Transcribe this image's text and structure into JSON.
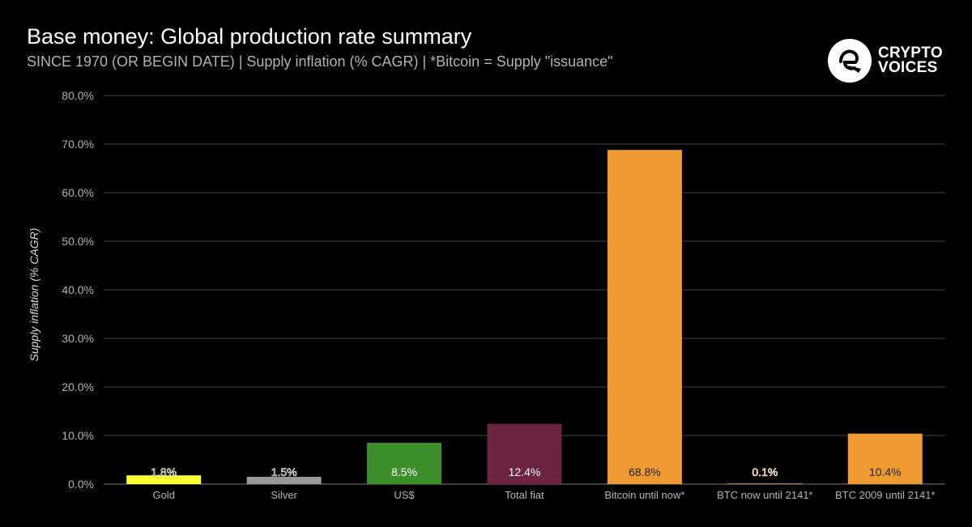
{
  "header": {
    "title": "Base money: Global production rate summary",
    "subtitle": "SINCE 1970 (OR BEGIN DATE) | Supply inflation (% CAGR) | *Bitcoin = Supply \"issuance\""
  },
  "logo": {
    "line1": "CRYPTO",
    "line2": "VOICES"
  },
  "chart_data": {
    "type": "bar",
    "title": "Base money: Global production rate summary",
    "subtitle": "SINCE 1970 (OR BEGIN DATE) | Supply inflation (% CAGR) | *Bitcoin = Supply \"issuance\"",
    "xlabel": "",
    "ylabel": "Supply inflation (% CAGR)",
    "ylim": [
      0,
      80
    ],
    "yticks": [
      0,
      10,
      20,
      30,
      40,
      50,
      60,
      70,
      80
    ],
    "ytick_labels": [
      "0.0%",
      "10.0%",
      "20.0%",
      "30.0%",
      "40.0%",
      "50.0%",
      "60.0%",
      "70.0%",
      "80.0%"
    ],
    "grid": true,
    "legend": "none",
    "categories": [
      "Gold",
      "Silver",
      "US$",
      "Total fiat",
      "Bitcoin until now*",
      "BTC now until 2141*",
      "BTC 2009 until 2141*"
    ],
    "values": [
      1.8,
      1.5,
      8.5,
      12.4,
      68.8,
      0.1,
      10.4
    ],
    "data_labels": [
      "1.8%",
      "1.5%",
      "8.5%",
      "12.4%",
      "68.8%",
      "0.1%",
      "10.4%"
    ],
    "colors": [
      "#ffff33",
      "#999999",
      "#3d8f2b",
      "#6d2342",
      "#f09a33",
      "#f09a33",
      "#f09a33"
    ],
    "label_colors": [
      "#555500",
      "#555555",
      "#ffffff",
      "#ffffff",
      "#222222",
      "#f09a33",
      "#222222"
    ]
  }
}
